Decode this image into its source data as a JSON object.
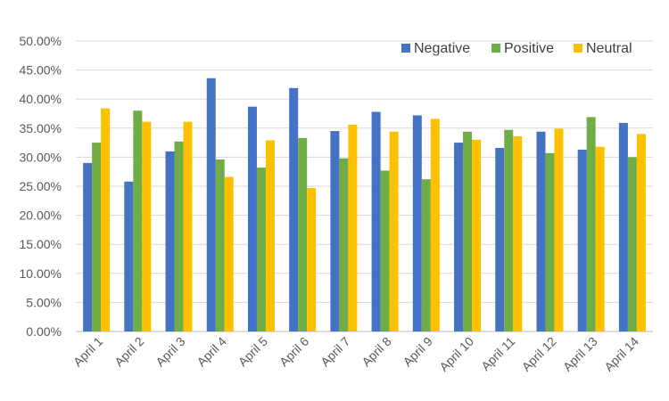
{
  "chart_data": {
    "type": "bar",
    "title": "",
    "xlabel": "",
    "ylabel": "",
    "ylim": [
      0,
      0.5
    ],
    "y_ticks": [
      "0.00%",
      "5.00%",
      "10.00%",
      "15.00%",
      "20.00%",
      "25.00%",
      "30.00%",
      "35.00%",
      "40.00%",
      "45.00%",
      "50.00%"
    ],
    "grid": true,
    "legend_position": "top-right",
    "categories": [
      "April 1",
      "April 2",
      "April 3",
      "April 4",
      "April 5",
      "April 6",
      "April 7",
      "April 8",
      "April 9",
      "April 10",
      "April 11",
      "April 12",
      "April 13",
      "April 14"
    ],
    "series": [
      {
        "name": "Negative",
        "color": "#4472C4",
        "values": [
          0.29,
          0.258,
          0.31,
          0.436,
          0.387,
          0.419,
          0.345,
          0.378,
          0.372,
          0.325,
          0.316,
          0.344,
          0.313,
          0.359
        ]
      },
      {
        "name": "Positive",
        "color": "#70AD47",
        "values": [
          0.325,
          0.38,
          0.327,
          0.296,
          0.282,
          0.333,
          0.298,
          0.277,
          0.262,
          0.344,
          0.347,
          0.307,
          0.369,
          0.3
        ]
      },
      {
        "name": "Neutral",
        "color": "#FFC000",
        "values": [
          0.384,
          0.361,
          0.361,
          0.266,
          0.329,
          0.247,
          0.356,
          0.344,
          0.366,
          0.33,
          0.336,
          0.349,
          0.318,
          0.34
        ]
      }
    ]
  }
}
